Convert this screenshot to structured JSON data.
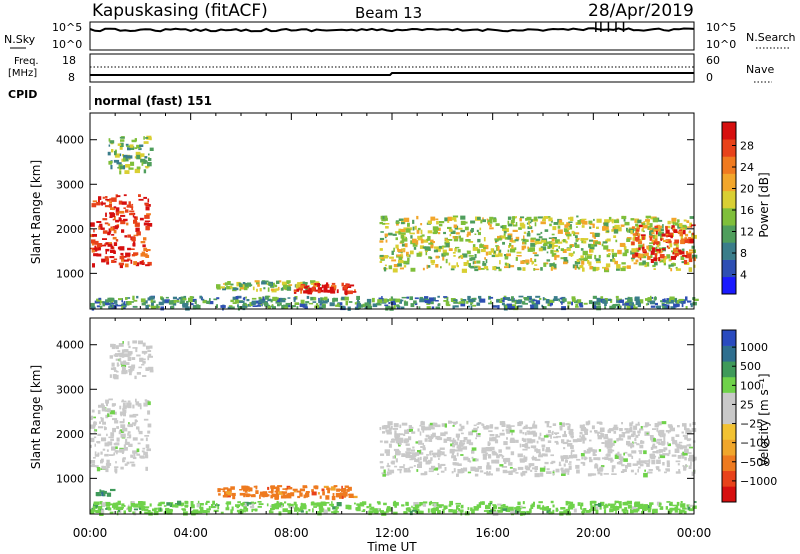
{
  "header": {
    "station": "Kapuskasing (fitACF)",
    "beam": "Beam 13",
    "date": "28/Apr/2019"
  },
  "top_panel": {
    "left_label": "N.Sky",
    "right_label": "N.Search",
    "left_ticks": [
      "10^5",
      "10^0"
    ],
    "right_ticks": [
      "10^5",
      "10^0"
    ]
  },
  "freq_panel": {
    "left_label_1": "Freq.",
    "left_label_2": "[MHz]",
    "right_label": "Nave",
    "left_ticks": [
      "18",
      "8"
    ],
    "right_ticks": [
      "60",
      "0"
    ]
  },
  "cpid": {
    "label": "CPID",
    "value": "normal (fast) 151"
  },
  "chart_data": [
    {
      "type": "heatmap",
      "panel": "power",
      "xlabel": "",
      "ylabel": "Slant Range [km]",
      "x_ticks": [
        "00:00",
        "04:00",
        "08:00",
        "12:00",
        "16:00",
        "20:00",
        "00:00"
      ],
      "y_ticks": [
        1000,
        2000,
        3000,
        4000
      ],
      "ylim": [
        200,
        4600
      ],
      "colorbar": {
        "label": "Power [dB]",
        "ticks": [
          "4",
          "8",
          "12",
          "16",
          "20",
          "24",
          "28"
        ],
        "colors": [
          "#1a1aff",
          "#2e4fb3",
          "#3a7d8a",
          "#4f9e5c",
          "#7fbf3a",
          "#d9cf33",
          "#f2a62b",
          "#f07a1f",
          "#e8421a",
          "#d60f0f"
        ]
      },
      "regions": [
        {
          "t0": 0.0,
          "t1": 2.3,
          "r0": 1200,
          "r1": 2800,
          "level": 0.9
        },
        {
          "t0": 0.7,
          "t1": 2.4,
          "r0": 3300,
          "r1": 4100,
          "level": 0.4
        },
        {
          "t0": 5.0,
          "t1": 9.0,
          "r0": 650,
          "r1": 850,
          "level": 0.45
        },
        {
          "t0": 8.0,
          "t1": 10.5,
          "r0": 600,
          "r1": 800,
          "level": 0.95
        },
        {
          "t0": 11.5,
          "t1": 24.0,
          "r0": 1100,
          "r1": 2300,
          "level": 0.5
        },
        {
          "t0": 21.5,
          "t1": 24.0,
          "r0": 1300,
          "r1": 2100,
          "level": 0.85
        },
        {
          "t0": 0.0,
          "t1": 24.0,
          "r0": 250,
          "r1": 500,
          "level": 0.3
        }
      ]
    },
    {
      "type": "heatmap",
      "panel": "velocity",
      "xlabel": "Time UT",
      "ylabel": "Slant Range [km]",
      "x_ticks": [
        "00:00",
        "04:00",
        "08:00",
        "12:00",
        "16:00",
        "20:00",
        "00:00"
      ],
      "y_ticks": [
        1000,
        2000,
        3000,
        4000
      ],
      "ylim": [
        200,
        4600
      ],
      "colorbar": {
        "label": "Velocity [m s⁻¹]",
        "ticks": [
          "1000",
          "500",
          "100",
          "25",
          "−25",
          "−100",
          "−500",
          "−1000"
        ],
        "colors": [
          "#2a4bbf",
          "#2f6f8f",
          "#3f9a5a",
          "#6fd24a",
          "#c9c9c9",
          "#c9c9c9",
          "#f2c233",
          "#f0a62b",
          "#ee7a1f",
          "#e8421a",
          "#d60f0f"
        ]
      },
      "regions": [
        {
          "t0": 0.0,
          "t1": 2.3,
          "r0": 1200,
          "r1": 2800,
          "v": 0
        },
        {
          "t0": 0.7,
          "t1": 2.4,
          "r0": 3300,
          "r1": 4100,
          "v": 0
        },
        {
          "t0": 0.2,
          "t1": 0.8,
          "r0": 650,
          "r1": 800,
          "v": 150
        },
        {
          "t0": 5.0,
          "t1": 10.5,
          "r0": 600,
          "r1": 850,
          "v": -150
        },
        {
          "t0": 11.5,
          "t1": 24.0,
          "r0": 1100,
          "r1": 2300,
          "v": 0
        },
        {
          "t0": 0.0,
          "t1": 24.0,
          "r0": 250,
          "r1": 500,
          "v": 60
        }
      ]
    }
  ]
}
